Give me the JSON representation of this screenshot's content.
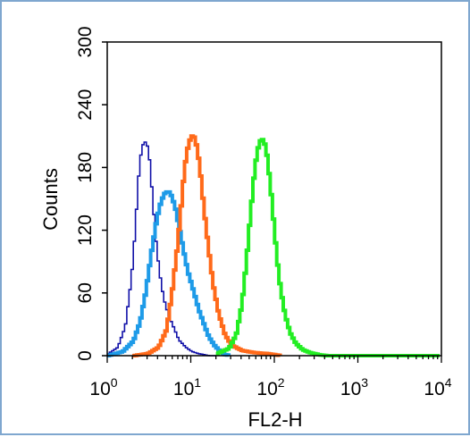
{
  "chart_data": {
    "type": "histogram",
    "title": "",
    "xlabel": "FL2-H",
    "ylabel": "Counts",
    "x_scale": "log",
    "xlim": [
      1,
      10000
    ],
    "ylim": [
      0,
      300
    ],
    "grid": false,
    "legend": "none",
    "x_ticks": [
      {
        "value": 1,
        "base": "10",
        "exp": "0"
      },
      {
        "value": 10,
        "base": "10",
        "exp": "1"
      },
      {
        "value": 100,
        "base": "10",
        "exp": "2"
      },
      {
        "value": 1000,
        "base": "10",
        "exp": "3"
      },
      {
        "value": 10000,
        "base": "10",
        "exp": "4"
      }
    ],
    "y_ticks": [
      0,
      60,
      120,
      180,
      240,
      300
    ],
    "series": [
      {
        "color": "#1010a8",
        "line_width": 1.6,
        "x": [
          1,
          1.3,
          1.6,
          1.9,
          2.1,
          2.3,
          2.5,
          2.7,
          2.9,
          3.1,
          3.4,
          3.7,
          4.1,
          4.6,
          5.2,
          6,
          7,
          8.5,
          10,
          12,
          14,
          16,
          20
        ],
        "y": [
          2,
          8,
          28,
          75,
          120,
          170,
          198,
          205,
          203,
          190,
          150,
          112,
          80,
          55,
          40,
          28,
          15,
          8,
          4,
          2,
          1,
          0,
          0
        ]
      },
      {
        "color": "#1e9be8",
        "line_width": 4,
        "x": [
          1,
          1.5,
          2,
          2.4,
          2.8,
          3.3,
          3.8,
          4.3,
          4.8,
          5.3,
          5.8,
          6.4,
          7,
          8,
          9,
          10.5,
          12,
          14,
          16,
          19,
          22,
          25,
          30
        ],
        "y": [
          0,
          4,
          14,
          32,
          60,
          100,
          130,
          148,
          156,
          157,
          152,
          140,
          124,
          100,
          80,
          62,
          45,
          30,
          18,
          9,
          4,
          1,
          0
        ]
      },
      {
        "color": "#ff6a1a",
        "line_width": 4,
        "x": [
          2,
          3,
          4,
          5,
          5.8,
          6.8,
          7.5,
          8.2,
          9,
          9.8,
          10.6,
          11.5,
          12.5,
          14,
          16,
          18,
          21,
          25,
          30,
          40,
          55,
          80,
          120
        ],
        "y": [
          0,
          2,
          8,
          25,
          60,
          108,
          145,
          180,
          200,
          210,
          210,
          200,
          180,
          140,
          100,
          68,
          40,
          20,
          10,
          5,
          3,
          2,
          0
        ]
      },
      {
        "color": "#23ee23",
        "line_width": 4,
        "x": [
          20,
          28,
          34,
          40,
          45,
          50,
          55,
          60,
          65,
          70,
          75,
          80,
          88,
          96,
          105,
          115,
          130,
          150,
          175,
          210,
          260,
          330,
          420,
          600,
          10000
        ],
        "y": [
          2,
          7,
          20,
          50,
          90,
          132,
          168,
          193,
          205,
          207,
          202,
          190,
          160,
          126,
          92,
          65,
          40,
          22,
          12,
          6,
          3,
          1,
          0,
          0,
          0
        ]
      }
    ]
  }
}
